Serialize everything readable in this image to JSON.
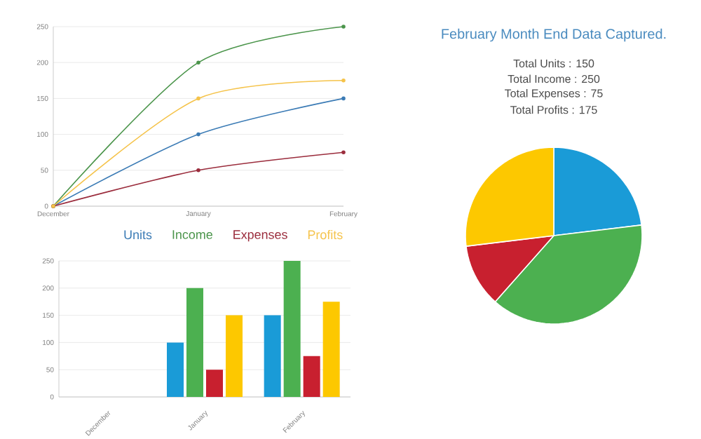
{
  "chart_data": [
    {
      "type": "line",
      "categories": [
        "December",
        "January",
        "February"
      ],
      "series": [
        {
          "name": "Units",
          "color": "#3b7bb5",
          "values": [
            0,
            100,
            150
          ]
        },
        {
          "name": "Income",
          "color": "#4a944a",
          "values": [
            0,
            200,
            250
          ]
        },
        {
          "name": "Expenses",
          "color": "#9b2d3d",
          "values": [
            0,
            50,
            75
          ]
        },
        {
          "name": "Profits",
          "color": "#f5c34a",
          "values": [
            0,
            150,
            175
          ]
        }
      ],
      "ylim": [
        0,
        250
      ],
      "yticks": [
        0,
        50,
        100,
        150,
        200,
        250
      ],
      "grid": "y",
      "legend": "bottom",
      "marker": "circle"
    },
    {
      "type": "bar",
      "categories": [
        "December",
        "January",
        "February"
      ],
      "series": [
        {
          "color": "#1a9bd7",
          "values": [
            0,
            100,
            150
          ]
        },
        {
          "color": "#4cb050",
          "values": [
            0,
            200,
            250
          ]
        },
        {
          "color": "#c8202f",
          "values": [
            0,
            50,
            75
          ]
        },
        {
          "color": "#fdc800",
          "values": [
            0,
            150,
            175
          ]
        }
      ],
      "ylim": [
        0,
        250
      ],
      "yticks": [
        0,
        50,
        100,
        150,
        200,
        250
      ],
      "grid": "y"
    },
    {
      "type": "pie",
      "title": "February Month End Data Captured.",
      "annotations": [
        "Total Units : 150",
        "Total Income : 250",
        "Total Expenses : 75",
        "Total Profits : 175"
      ],
      "categories": [
        null,
        null,
        null,
        null
      ],
      "values": [
        23.08,
        38.46,
        11.54,
        26.92
      ],
      "colors": [
        "#1a9bd7",
        "#4cb050",
        "#c8202f",
        "#fdc800"
      ]
    }
  ]
}
